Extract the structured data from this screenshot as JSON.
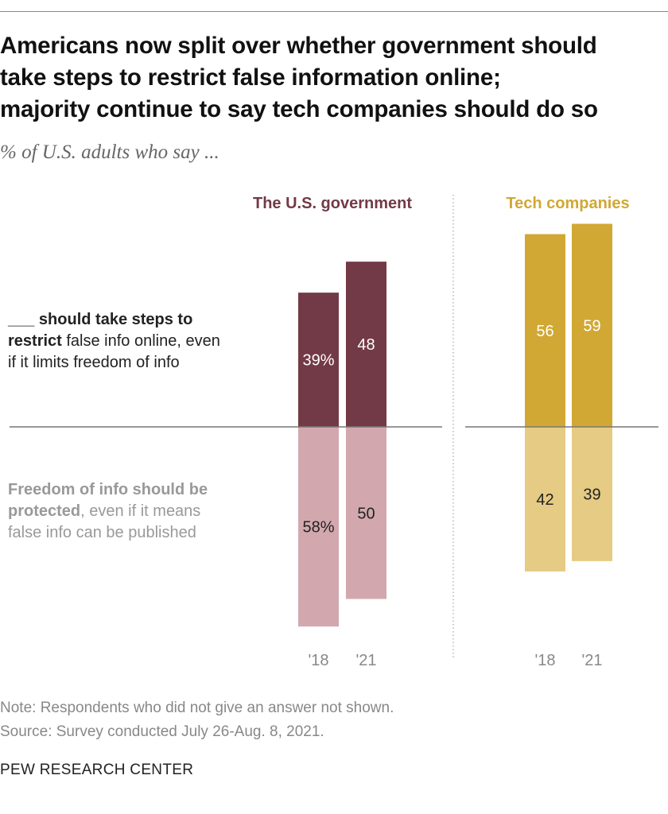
{
  "title_lines": [
    "Americans now split over whether government should",
    "take steps to restrict false information online;",
    "majority continue to say tech companies should do so"
  ],
  "subtitle": "% of U.S. adults who say ...",
  "labels": {
    "restrict_blank": "___",
    "restrict_bold": " should take steps to",
    "restrict_bold2": "restrict",
    "restrict_rest": " false info online, even",
    "restrict_line3": "if it limits freedom of info",
    "protect_bold": "Freedom of info should be",
    "protect_bold2": "protected",
    "protect_rest": ", even if it means",
    "protect_line3": "false info can be published"
  },
  "note": "Note: Respondents who did not give an answer not shown.",
  "source": "Source: Survey conducted July 26-Aug. 8, 2021.",
  "organization": "PEW RESEARCH CENTER",
  "chart_data": {
    "type": "bar",
    "layout": "diverging",
    "categories": [
      "'18",
      "'21"
    ],
    "panels": [
      {
        "name": "The U.S. government",
        "color_restrict": "#723a46",
        "color_protect": "#d2a8ae",
        "title_color": "#723a46",
        "restrict": [
          39,
          48
        ],
        "protect": [
          58,
          50
        ],
        "restrict_labels": [
          "39%",
          "48"
        ],
        "protect_labels": [
          "58%",
          "50"
        ]
      },
      {
        "name": "Tech companies",
        "color_restrict": "#d1a833",
        "color_protect": "#e5cb83",
        "title_color": "#d1a833",
        "restrict": [
          56,
          59
        ],
        "protect": [
          42,
          39
        ],
        "restrict_labels": [
          "56",
          "59"
        ],
        "protect_labels": [
          "42",
          "39"
        ]
      }
    ]
  }
}
